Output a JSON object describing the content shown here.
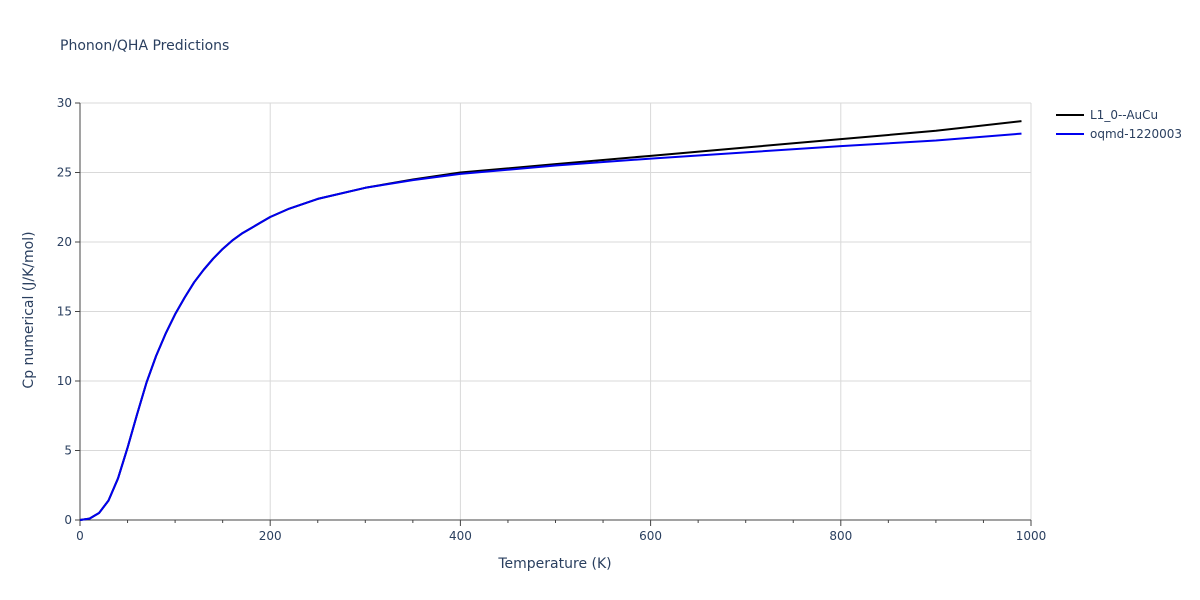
{
  "chart_data": {
    "type": "line",
    "title": "Phonon/QHA Predictions",
    "xlabel": "Temperature (K)",
    "ylabel": "Cp numerical (J/K/mol)",
    "xlim": [
      0,
      1000
    ],
    "ylim": [
      0,
      30
    ],
    "xticks": [
      "0",
      "200",
      "400",
      "600",
      "800",
      "1000"
    ],
    "yticks": [
      "0",
      "5",
      "10",
      "15",
      "20",
      "25",
      "30"
    ],
    "grid": true,
    "legend_position": "top-right",
    "series": [
      {
        "name": "L1_0--AuCu",
        "color": "#000000",
        "x": [
          0,
          10,
          20,
          30,
          40,
          50,
          60,
          70,
          80,
          90,
          100,
          110,
          120,
          130,
          140,
          150,
          160,
          170,
          180,
          190,
          200,
          220,
          250,
          300,
          350,
          400,
          500,
          600,
          700,
          800,
          900,
          990
        ],
        "y": [
          0,
          0.1,
          0.5,
          1.4,
          3.0,
          5.2,
          7.6,
          9.9,
          11.8,
          13.4,
          14.8,
          16.0,
          17.1,
          18.0,
          18.8,
          19.5,
          20.1,
          20.6,
          21.0,
          21.4,
          21.8,
          22.4,
          23.1,
          23.9,
          24.5,
          25.0,
          25.6,
          26.2,
          26.8,
          27.4,
          28.0,
          28.7
        ]
      },
      {
        "name": "oqmd-1220003",
        "color": "#0000ee",
        "x": [
          0,
          10,
          20,
          30,
          40,
          50,
          60,
          70,
          80,
          90,
          100,
          110,
          120,
          130,
          140,
          150,
          160,
          170,
          180,
          190,
          200,
          220,
          250,
          300,
          350,
          400,
          500,
          600,
          700,
          800,
          900,
          990
        ],
        "y": [
          0,
          0.1,
          0.5,
          1.4,
          3.0,
          5.2,
          7.6,
          9.9,
          11.8,
          13.4,
          14.8,
          16.0,
          17.1,
          18.0,
          18.8,
          19.5,
          20.1,
          20.6,
          21.0,
          21.4,
          21.8,
          22.4,
          23.1,
          23.9,
          24.45,
          24.9,
          25.5,
          26.0,
          26.45,
          26.9,
          27.3,
          27.8
        ]
      }
    ]
  }
}
